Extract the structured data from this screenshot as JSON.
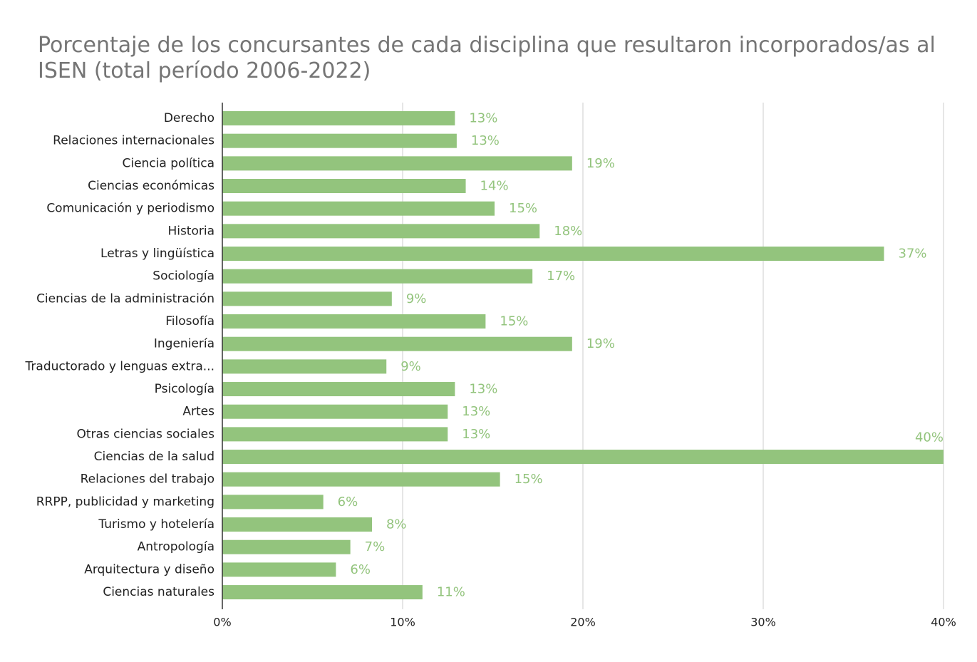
{
  "chart_data": {
    "type": "bar",
    "orientation": "horizontal",
    "title": "Porcentaje de los concursantes de cada disciplina que resultaron incorporados/as al ISEN (total período 2006-2022)",
    "categories": [
      "Derecho",
      "Relaciones internacionales",
      "Ciencia política",
      "Ciencias económicas",
      "Comunicación y periodismo",
      "Historia",
      "Letras y lingüística",
      "Sociología",
      "Ciencias de la administración",
      "Filosofía",
      "Ingeniería",
      "Traductorado y lenguas extra...",
      "Psicología",
      "Artes",
      "Otras ciencias sociales",
      "Ciencias de la salud",
      "Relaciones del trabajo",
      "RRPP, publicidad y marketing",
      "Turismo y hotelería",
      "Antropología",
      "Arquitectura y diseño",
      "Ciencias naturales"
    ],
    "values": [
      12.9,
      13.0,
      19.4,
      13.5,
      15.1,
      17.6,
      36.7,
      17.2,
      9.4,
      14.6,
      19.4,
      9.1,
      12.9,
      12.5,
      12.5,
      40.0,
      15.4,
      5.6,
      8.3,
      7.1,
      6.3,
      11.1
    ],
    "data_labels": [
      "13%",
      "13%",
      "19%",
      "14%",
      "15%",
      "18%",
      "37%",
      "17%",
      "9%",
      "15%",
      "19%",
      "9%",
      "13%",
      "13%",
      "13%",
      "40%",
      "15%",
      "6%",
      "8%",
      "7%",
      "6%",
      "11%"
    ],
    "x_ticks": [
      0,
      10,
      20,
      30,
      40
    ],
    "x_tick_labels": [
      "0%",
      "10%",
      "20%",
      "30%",
      "40%"
    ],
    "xlim": [
      0,
      40
    ],
    "xlabel": "",
    "ylabel": "",
    "grid": "vertical",
    "legend": "none",
    "bar_color": "#93c47d",
    "label_color": "#93c47d",
    "title_color": "#757575"
  }
}
